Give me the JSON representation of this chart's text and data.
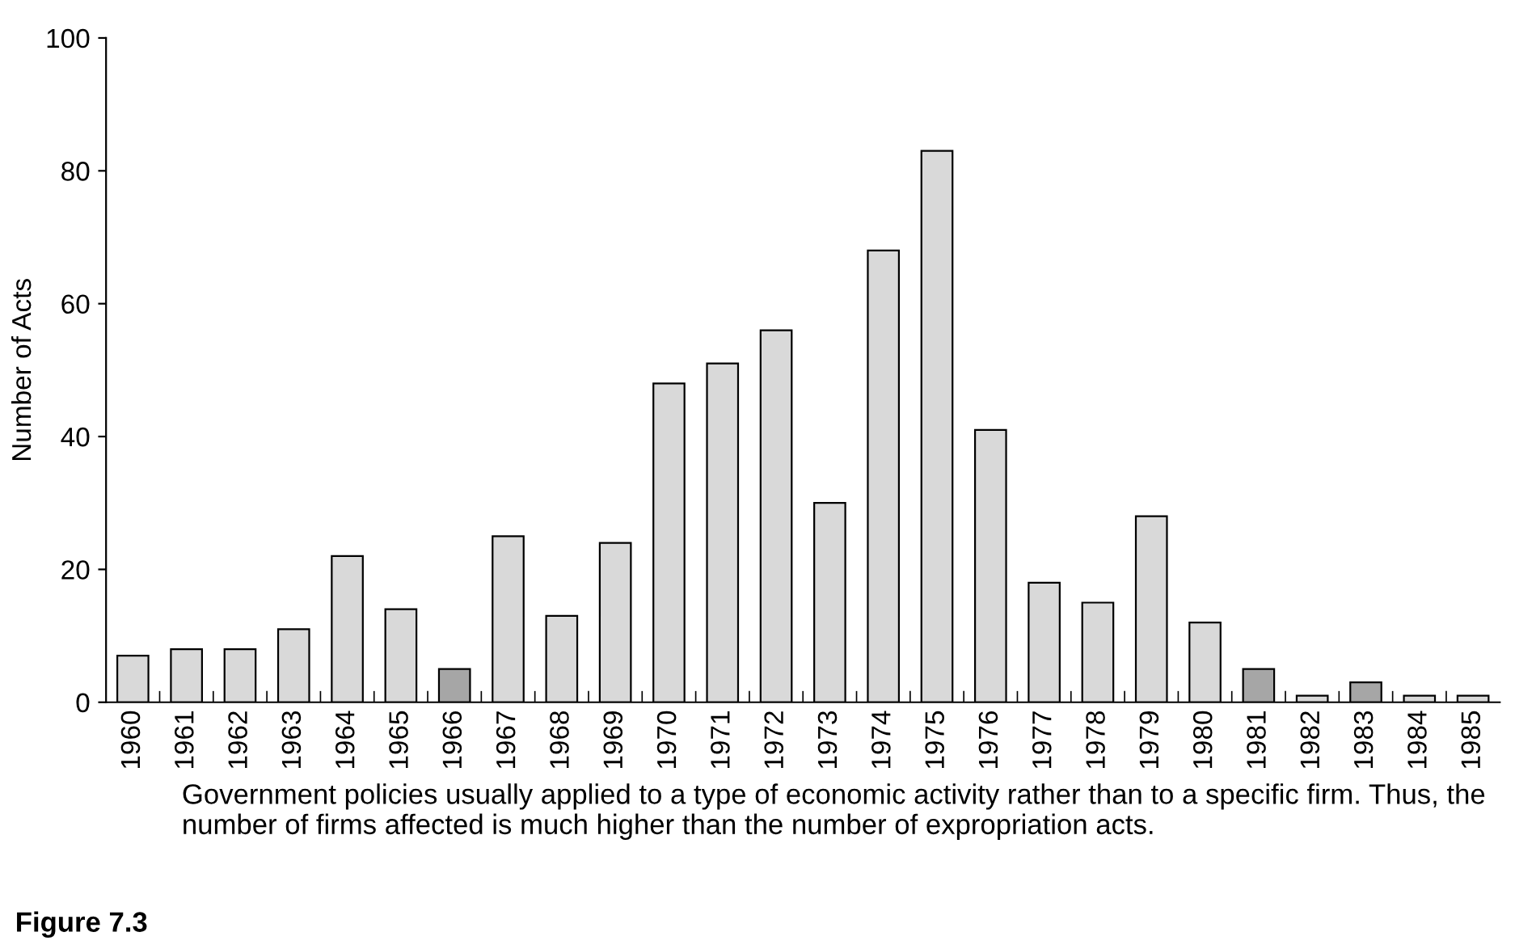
{
  "chart_data": {
    "type": "bar",
    "ylabel": "Number of Acts",
    "categories": [
      "1960",
      "1961",
      "1962",
      "1963",
      "1964",
      "1965",
      "1966",
      "1967",
      "1968",
      "1969",
      "1970",
      "1971",
      "1972",
      "1973",
      "1974",
      "1975",
      "1976",
      "1977",
      "1978",
      "1979",
      "1980",
      "1981",
      "1982",
      "1983",
      "1984",
      "1985"
    ],
    "values": [
      7,
      8,
      8,
      11,
      22,
      14,
      5,
      25,
      13,
      24,
      48,
      51,
      56,
      30,
      68,
      83,
      41,
      18,
      15,
      28,
      12,
      5,
      1,
      3,
      1,
      1
    ],
    "colors": [
      "#d9d9d9",
      "#d9d9d9",
      "#d9d9d9",
      "#d9d9d9",
      "#d9d9d9",
      "#d9d9d9",
      "#a6a6a6",
      "#d9d9d9",
      "#d9d9d9",
      "#d9d9d9",
      "#d9d9d9",
      "#d9d9d9",
      "#d9d9d9",
      "#d9d9d9",
      "#d9d9d9",
      "#d9d9d9",
      "#d9d9d9",
      "#d9d9d9",
      "#d9d9d9",
      "#d9d9d9",
      "#d9d9d9",
      "#a6a6a6",
      "#d9d9d9",
      "#a6a6a6",
      "#d9d9d9",
      "#d9d9d9"
    ],
    "ylim": [
      0,
      100
    ],
    "yticks": [
      0,
      20,
      40,
      60,
      80,
      100
    ],
    "grid": false,
    "annotations": [
      "Government policies usually applied to a type of economic activity rather than to a specific firm. Thus, the number of firms affected is much higher than the number of expropriation acts.",
      "Figure 7.3"
    ]
  }
}
